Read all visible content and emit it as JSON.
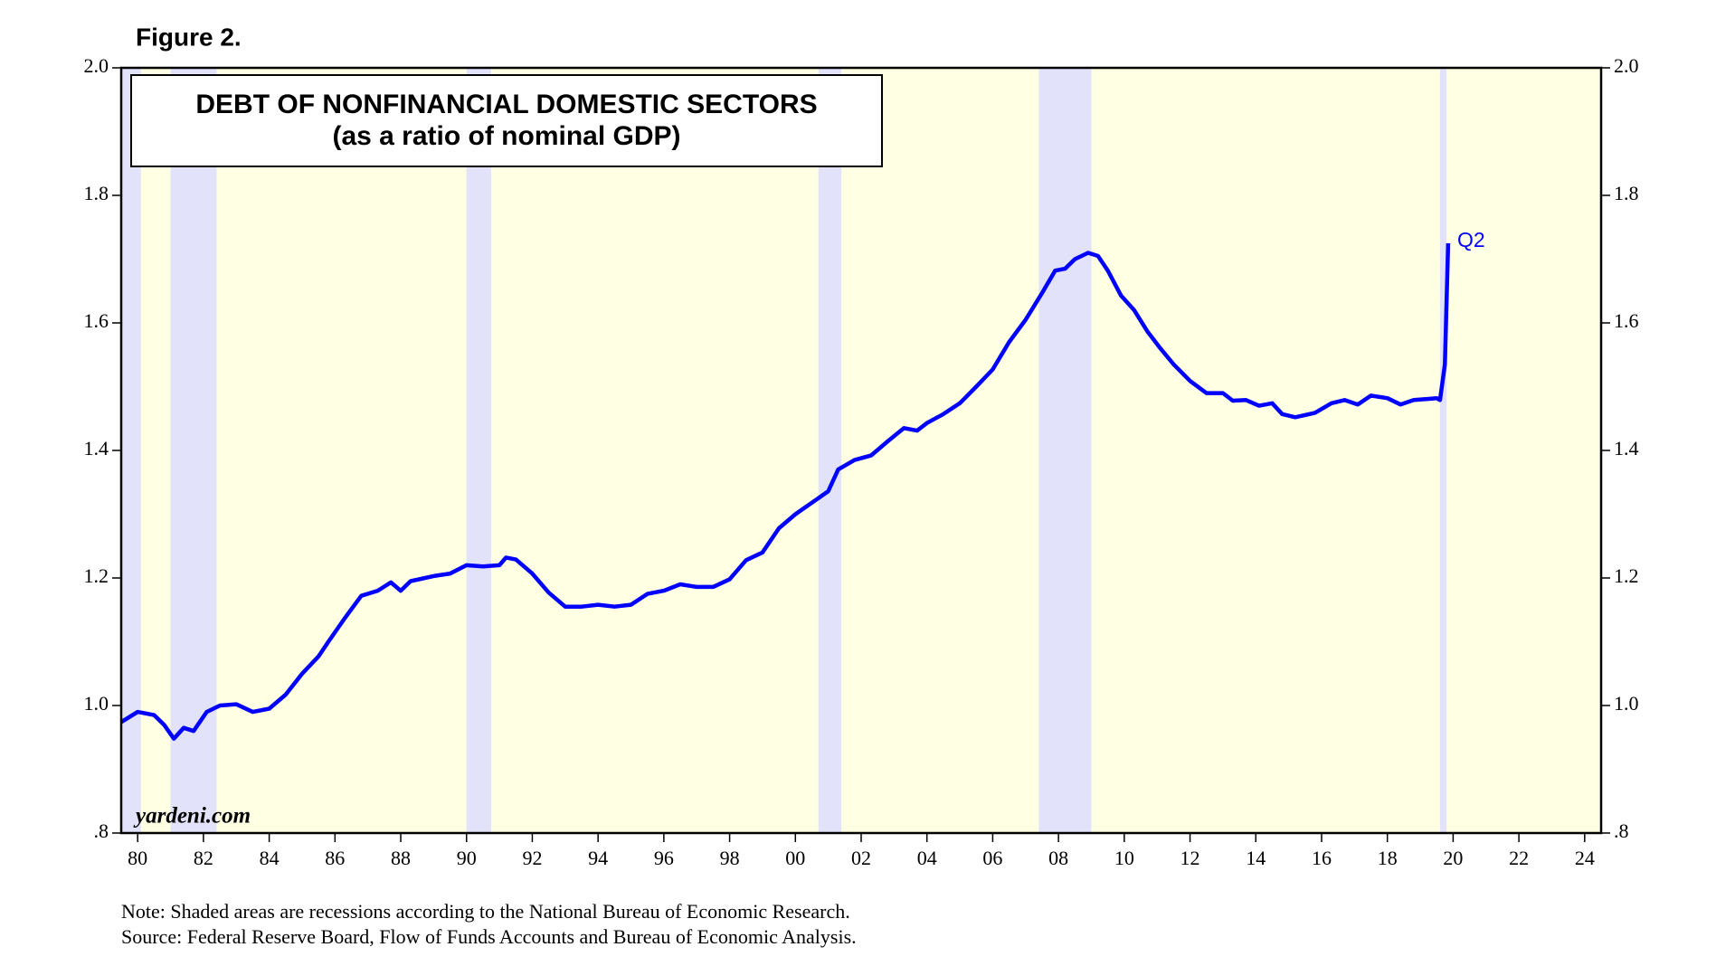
{
  "chart_data": {
    "type": "line",
    "figure_label": "Figure 2.",
    "title": "DEBT OF NONFINANCIAL DOMESTIC SECTORS",
    "subtitle": "(as a ratio of nominal GDP)",
    "annotation": "Q2",
    "watermark": "yardeni.com",
    "notes": [
      "Note: Shaded areas are recessions according to the National Bureau of Economic Research.",
      "Source: Federal Reserve Board, Flow of Funds Accounts and Bureau of Economic Analysis."
    ],
    "color": "#0000ff",
    "background": "#ffffe3",
    "recession_color": "#e2e2fa",
    "recessions": [
      [
        1980.0,
        1980.6
      ],
      [
        1981.5,
        1982.9
      ],
      [
        1990.5,
        1991.25
      ],
      [
        2001.2,
        2001.9
      ],
      [
        2007.9,
        2009.5
      ],
      [
        2020.1,
        2020.3
      ]
    ],
    "x": [
      1980.0,
      1980.5,
      1981.0,
      1981.3,
      1981.6,
      1981.9,
      1982.2,
      1982.6,
      1983.0,
      1983.5,
      1984.0,
      1984.5,
      1985.0,
      1985.5,
      1986.0,
      1986.3,
      1986.8,
      1987.3,
      1987.8,
      1988.2,
      1988.5,
      1988.8,
      1989.5,
      1990.0,
      1990.5,
      1991.0,
      1991.5,
      1991.7,
      1992.0,
      1992.5,
      1993.0,
      1993.5,
      1994.0,
      1994.5,
      1995.0,
      1995.5,
      1996.0,
      1996.5,
      1997.0,
      1997.5,
      1998.0,
      1998.5,
      1999.0,
      1999.5,
      2000.0,
      2000.5,
      2001.0,
      2001.5,
      2001.8,
      2002.3,
      2002.8,
      2003.3,
      2003.8,
      2004.2,
      2004.5,
      2005.0,
      2005.5,
      2006.0,
      2006.5,
      2007.0,
      2007.5,
      2008.0,
      2008.4,
      2008.7,
      2009.0,
      2009.4,
      2009.7,
      2010.0,
      2010.4,
      2010.8,
      2011.2,
      2011.6,
      2012.0,
      2012.5,
      2013.0,
      2013.5,
      2013.8,
      2014.2,
      2014.6,
      2015.0,
      2015.3,
      2015.7,
      2016.3,
      2016.8,
      2017.2,
      2017.6,
      2018.0,
      2018.5,
      2018.9,
      2019.3,
      2019.8,
      2020.0,
      2020.1,
      2020.25,
      2020.35
    ],
    "values": [
      0.974,
      0.99,
      0.985,
      0.97,
      0.948,
      0.965,
      0.96,
      0.99,
      1.0,
      1.002,
      0.99,
      0.995,
      1.017,
      1.05,
      1.077,
      1.1,
      1.137,
      1.172,
      1.18,
      1.193,
      1.18,
      1.195,
      1.203,
      1.207,
      1.22,
      1.218,
      1.22,
      1.232,
      1.229,
      1.207,
      1.177,
      1.155,
      1.155,
      1.158,
      1.155,
      1.158,
      1.175,
      1.18,
      1.19,
      1.186,
      1.186,
      1.198,
      1.228,
      1.24,
      1.278,
      1.3,
      1.318,
      1.336,
      1.37,
      1.385,
      1.392,
      1.414,
      1.435,
      1.431,
      1.443,
      1.457,
      1.474,
      1.5,
      1.527,
      1.57,
      1.605,
      1.647,
      1.682,
      1.685,
      1.7,
      1.71,
      1.705,
      1.682,
      1.643,
      1.62,
      1.587,
      1.56,
      1.535,
      1.509,
      1.49,
      1.49,
      1.478,
      1.479,
      1.47,
      1.474,
      1.457,
      1.452,
      1.459,
      1.474,
      1.479,
      1.472,
      1.486,
      1.482,
      1.472,
      1.479,
      1.481,
      1.482,
      1.479,
      1.535,
      1.725
    ],
    "xlim": [
      1980,
      2025
    ],
    "xticks": [
      {
        "value": 1980.5,
        "label": "80"
      },
      {
        "value": 1982.5,
        "label": "82"
      },
      {
        "value": 1984.5,
        "label": "84"
      },
      {
        "value": 1986.5,
        "label": "86"
      },
      {
        "value": 1988.5,
        "label": "88"
      },
      {
        "value": 1990.5,
        "label": "90"
      },
      {
        "value": 1992.5,
        "label": "92"
      },
      {
        "value": 1994.5,
        "label": "94"
      },
      {
        "value": 1996.5,
        "label": "96"
      },
      {
        "value": 1998.5,
        "label": "98"
      },
      {
        "value": 2000.5,
        "label": "00"
      },
      {
        "value": 2002.5,
        "label": "02"
      },
      {
        "value": 2004.5,
        "label": "04"
      },
      {
        "value": 2006.5,
        "label": "06"
      },
      {
        "value": 2008.5,
        "label": "08"
      },
      {
        "value": 2010.5,
        "label": "10"
      },
      {
        "value": 2012.5,
        "label": "12"
      },
      {
        "value": 2014.5,
        "label": "14"
      },
      {
        "value": 2016.5,
        "label": "16"
      },
      {
        "value": 2018.5,
        "label": "18"
      },
      {
        "value": 2020.5,
        "label": "20"
      },
      {
        "value": 2022.5,
        "label": "22"
      },
      {
        "value": 2024.5,
        "label": "24"
      }
    ],
    "ylim": [
      0.8,
      2.0
    ],
    "yticks": [
      {
        "value": 0.8,
        "label": ".8"
      },
      {
        "value": 1.0,
        "label": "1.0"
      },
      {
        "value": 1.2,
        "label": "1.2"
      },
      {
        "value": 1.4,
        "label": "1.4"
      },
      {
        "value": 1.6,
        "label": "1.6"
      },
      {
        "value": 1.8,
        "label": "1.8"
      },
      {
        "value": 2.0,
        "label": "2.0"
      }
    ],
    "y2lim": [
      0.8,
      2.0
    ],
    "y2ticks": [
      {
        "value": 0.8,
        "label": ".8"
      },
      {
        "value": 1.0,
        "label": "1.0"
      },
      {
        "value": 1.2,
        "label": "1.2"
      },
      {
        "value": 1.4,
        "label": "1.4"
      },
      {
        "value": 1.6,
        "label": "1.6"
      },
      {
        "value": 1.8,
        "label": "1.8"
      },
      {
        "value": 2.0,
        "label": "2.0"
      }
    ]
  }
}
